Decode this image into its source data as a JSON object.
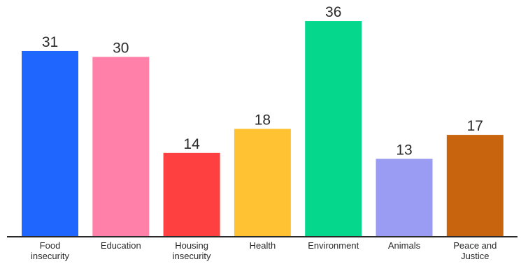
{
  "chart_data": {
    "type": "bar",
    "title": "",
    "xlabel": "",
    "ylabel": "",
    "ylim": [
      0,
      39.5
    ],
    "grid": false,
    "legend": "none",
    "categories": [
      [
        "Food",
        "insecurity"
      ],
      [
        "Education"
      ],
      [
        "Housing",
        "insecurity"
      ],
      [
        "Health"
      ],
      [
        "Environment"
      ],
      [
        "Animals"
      ],
      [
        "Peace and",
        "Justice"
      ]
    ],
    "values": [
      31,
      30,
      14,
      18,
      36,
      13,
      17
    ],
    "colors": [
      "#1f66ff",
      "#ff80a8",
      "#ff4040",
      "#ffc233",
      "#05d88d",
      "#9a9cf4",
      "#c8640e"
    ],
    "axis_color": "#2a2a2a"
  }
}
